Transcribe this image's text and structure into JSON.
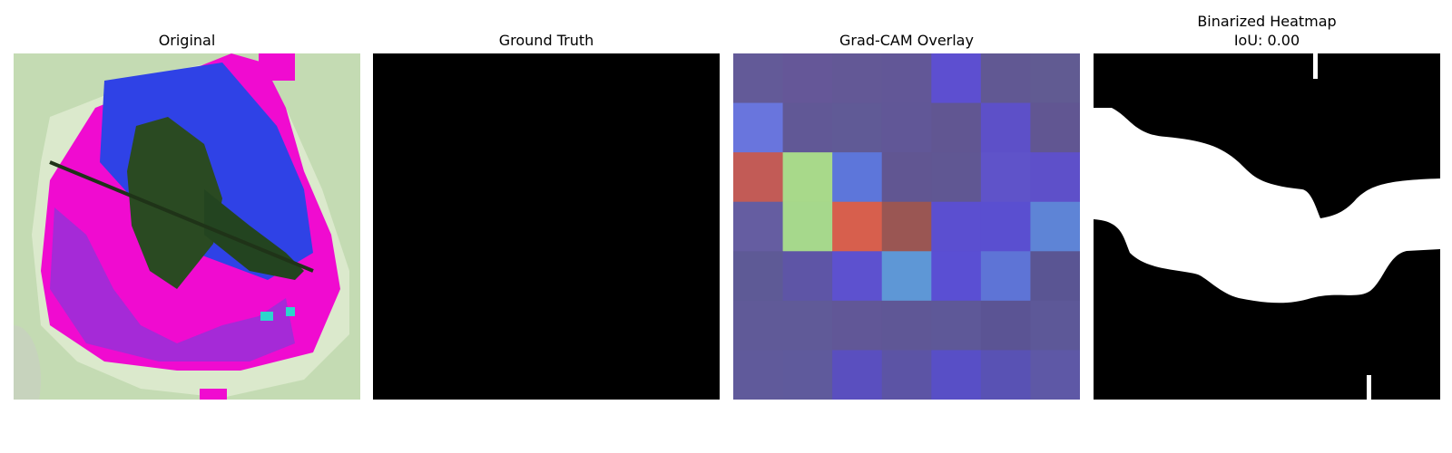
{
  "panels": [
    {
      "title": "Original",
      "subtitle": ""
    },
    {
      "title": "Ground Truth",
      "subtitle": ""
    },
    {
      "title": "Grad-CAM Overlay",
      "subtitle": ""
    },
    {
      "title": "Binarized Heatmap",
      "subtitle": "IoU: 0.00"
    }
  ],
  "gradcam_grid_colors": [
    [
      "#635a98",
      "#655798",
      "#635896",
      "#625797",
      "#5d4fd0",
      "#615893",
      "#615b92"
    ],
    [
      "#6975dd",
      "#615896",
      "#605a96",
      "#615797",
      "#615692",
      "#5d50c8",
      "#615692"
    ],
    [
      "#c25b56",
      "#a8d98a",
      "#5d76da",
      "#615692",
      "#605793",
      "#5f53c9",
      "#5e50c9"
    ],
    [
      "#655da1",
      "#a6d88c",
      "#d75f4d",
      "#9a5653",
      "#5b4fd0",
      "#5a4fd0",
      "#5e84d6"
    ],
    [
      "#5e5a96",
      "#5e55a6",
      "#5d51cf",
      "#5e97d6",
      "#5a4fd3",
      "#5e74d6",
      "#5a5593"
    ],
    [
      "#605a98",
      "#605a98",
      "#615797",
      "#5f5796",
      "#5e5898",
      "#5b5494",
      "#5d5898"
    ],
    [
      "#605a9b",
      "#5f5a9c",
      "#5a4fbf",
      "#5c54a5",
      "#584fc6",
      "#5952b4",
      "#5e58a6"
    ]
  ],
  "iou": 0.0
}
